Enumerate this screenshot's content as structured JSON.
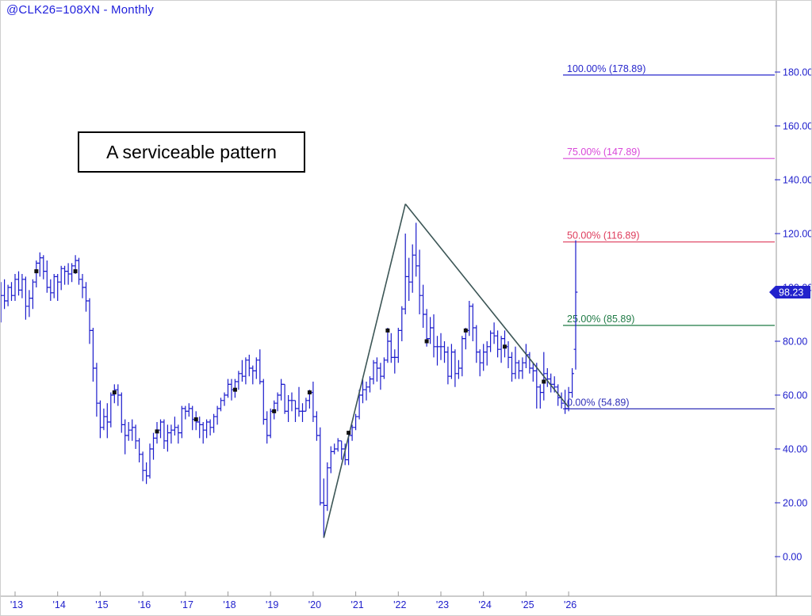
{
  "window": {
    "title": "@CLK26=108XN - Monthly"
  },
  "annotation": {
    "text": "A serviceable pattern"
  },
  "price_tag": {
    "value": "98.23",
    "bg": "#2222cc",
    "text_color": "#ffffff"
  },
  "colors": {
    "bar": "#1c1ccc",
    "axis_text": "#2020cc",
    "frame": "#9a9a9a",
    "trendline": "#3c5656",
    "marker": "#111111",
    "background": "#ffffff"
  },
  "chart_data": {
    "type": "bar",
    "subtype": "ohlc-monthly",
    "symbol": "@CLK26=108XN",
    "timeframe": "Monthly",
    "title": "@CLK26=108XN - Monthly",
    "start_month": "2012-09",
    "bars_format": [
      "open",
      "high",
      "low",
      "close"
    ],
    "bars": [
      [
        95,
        102,
        87,
        97
      ],
      [
        97,
        103,
        92,
        95
      ],
      [
        95,
        101,
        93,
        100
      ],
      [
        100,
        102,
        95,
        97
      ],
      [
        97,
        105,
        95,
        103
      ],
      [
        103,
        106,
        97,
        99
      ],
      [
        99,
        105,
        96,
        103
      ],
      [
        103,
        104,
        88,
        93
      ],
      [
        93,
        99,
        89,
        96
      ],
      [
        96,
        103,
        92,
        102
      ],
      [
        102,
        110,
        100,
        109
      ],
      [
        109,
        113,
        104,
        111
      ],
      [
        111,
        112,
        103,
        106
      ],
      [
        106,
        110,
        98,
        100
      ],
      [
        100,
        103,
        95,
        98
      ],
      [
        98,
        105,
        96,
        104
      ],
      [
        104,
        105,
        95,
        102
      ],
      [
        102,
        108,
        99,
        107
      ],
      [
        107,
        108,
        101,
        106
      ],
      [
        106,
        109,
        101,
        105
      ],
      [
        105,
        109,
        102,
        108
      ],
      [
        108,
        112,
        105,
        110
      ],
      [
        110,
        111,
        101,
        103
      ],
      [
        103,
        105,
        96,
        100
      ],
      [
        100,
        102,
        91,
        95
      ],
      [
        95,
        96,
        79,
        84
      ],
      [
        84,
        85,
        65,
        70
      ],
      [
        70,
        72,
        52,
        57
      ],
      [
        57,
        58,
        44,
        48
      ],
      [
        48,
        55,
        47,
        52
      ],
      [
        52,
        57,
        44,
        50
      ],
      [
        50,
        61,
        48,
        60
      ],
      [
        60,
        64,
        57,
        62
      ],
      [
        62,
        64,
        56,
        60
      ],
      [
        60,
        61,
        46,
        49
      ],
      [
        49,
        51,
        38,
        45
      ],
      [
        45,
        50,
        43,
        47
      ],
      [
        47,
        51,
        43,
        48
      ],
      [
        48,
        49,
        40,
        43
      ],
      [
        43,
        44,
        35,
        38
      ],
      [
        38,
        39,
        28,
        32
      ],
      [
        32,
        35,
        27,
        30
      ],
      [
        30,
        42,
        29,
        40
      ],
      [
        40,
        46,
        36,
        44
      ],
      [
        44,
        50,
        42,
        47
      ],
      [
        47,
        51,
        44,
        50
      ],
      [
        50,
        51,
        40,
        43
      ],
      [
        43,
        49,
        39,
        46
      ],
      [
        46,
        49,
        42,
        47
      ],
      [
        47,
        52,
        45,
        48
      ],
      [
        48,
        49,
        42,
        46
      ],
      [
        46,
        56,
        44,
        55
      ],
      [
        55,
        56,
        51,
        54
      ],
      [
        54,
        57,
        52,
        55
      ],
      [
        55,
        56,
        47,
        51
      ],
      [
        51,
        54,
        47,
        50
      ],
      [
        50,
        52,
        44,
        49
      ],
      [
        49,
        50,
        42,
        47
      ],
      [
        47,
        51,
        44,
        50
      ],
      [
        50,
        51,
        45,
        48
      ],
      [
        48,
        53,
        46,
        52
      ],
      [
        52,
        56,
        49,
        55
      ],
      [
        55,
        59,
        54,
        58
      ],
      [
        58,
        61,
        56,
        60
      ],
      [
        60,
        66,
        59,
        64
      ],
      [
        64,
        66,
        58,
        62
      ],
      [
        62,
        66,
        59,
        65
      ],
      [
        65,
        69,
        62,
        68
      ],
      [
        68,
        73,
        65,
        67
      ],
      [
        67,
        74,
        64,
        73
      ],
      [
        73,
        75,
        67,
        70
      ],
      [
        70,
        71,
        64,
        69
      ],
      [
        69,
        74,
        66,
        73
      ],
      [
        73,
        77,
        64,
        65
      ],
      [
        65,
        66,
        49,
        51
      ],
      [
        51,
        54,
        42,
        45
      ],
      [
        45,
        55,
        44,
        54
      ],
      [
        54,
        58,
        51,
        57
      ],
      [
        57,
        61,
        54,
        60
      ],
      [
        60,
        66,
        58,
        64
      ],
      [
        64,
        64,
        53,
        54
      ],
      [
        54,
        60,
        50,
        58
      ],
      [
        58,
        61,
        54,
        58
      ],
      [
        58,
        58,
        50,
        55
      ],
      [
        55,
        63,
        52,
        54
      ],
      [
        54,
        57,
        50,
        54
      ],
      [
        54,
        59,
        54,
        58
      ],
      [
        58,
        62,
        55,
        61
      ],
      [
        61,
        65,
        50,
        52
      ],
      [
        52,
        54,
        43,
        45
      ],
      [
        45,
        48,
        19,
        20
      ],
      [
        20,
        29,
        7,
        19
      ],
      [
        19,
        35,
        17,
        33
      ],
      [
        33,
        41,
        31,
        39
      ],
      [
        39,
        42,
        38,
        40
      ],
      [
        40,
        44,
        39,
        43
      ],
      [
        43,
        43,
        36,
        40
      ],
      [
        40,
        42,
        34,
        36
      ],
      [
        36,
        46,
        34,
        45
      ],
      [
        45,
        49,
        43,
        48
      ],
      [
        48,
        53,
        47,
        52
      ],
      [
        52,
        62,
        51,
        60
      ],
      [
        60,
        66,
        57,
        62
      ],
      [
        62,
        65,
        58,
        63
      ],
      [
        63,
        67,
        61,
        66
      ],
      [
        66,
        73,
        64,
        72
      ],
      [
        72,
        74,
        65,
        70
      ],
      [
        70,
        72,
        62,
        67
      ],
      [
        67,
        74,
        66,
        73
      ],
      [
        73,
        85,
        72,
        80
      ],
      [
        80,
        83,
        72,
        74
      ],
      [
        74,
        77,
        68,
        74
      ],
      [
        74,
        85,
        72,
        84
      ],
      [
        84,
        93,
        80,
        92
      ],
      [
        92,
        120,
        90,
        104
      ],
      [
        104,
        111,
        95,
        102
      ],
      [
        102,
        116,
        98,
        112
      ],
      [
        112,
        124,
        104,
        108
      ],
      [
        108,
        114,
        90,
        97
      ],
      [
        97,
        101,
        85,
        90
      ],
      [
        90,
        92,
        78,
        81
      ],
      [
        81,
        89,
        79,
        85
      ],
      [
        85,
        90,
        74,
        78
      ],
      [
        78,
        82,
        71,
        78
      ],
      [
        78,
        83,
        73,
        78
      ],
      [
        78,
        80,
        72,
        76
      ],
      [
        76,
        78,
        64,
        67
      ],
      [
        67,
        79,
        66,
        76
      ],
      [
        76,
        77,
        63,
        68
      ],
      [
        68,
        73,
        66,
        70
      ],
      [
        70,
        82,
        67,
        81
      ],
      [
        81,
        85,
        77,
        84
      ],
      [
        84,
        95,
        82,
        93
      ],
      [
        93,
        94,
        80,
        85
      ],
      [
        85,
        86,
        72,
        76
      ],
      [
        76,
        77,
        67,
        72
      ],
      [
        72,
        79,
        69,
        76
      ],
      [
        76,
        80,
        71,
        78
      ],
      [
        78,
        84,
        76,
        83
      ],
      [
        83,
        87,
        79,
        82
      ],
      [
        82,
        84,
        74,
        77
      ],
      [
        77,
        82,
        72,
        81
      ],
      [
        81,
        84,
        74,
        78
      ],
      [
        78,
        80,
        70,
        74
      ],
      [
        74,
        76,
        65,
        68
      ],
      [
        68,
        78,
        66,
        72
      ],
      [
        72,
        73,
        66,
        69
      ],
      [
        69,
        74,
        66,
        72
      ],
      [
        72,
        79,
        70,
        75
      ],
      [
        75,
        76,
        68,
        70
      ],
      [
        70,
        72,
        65,
        69
      ],
      [
        69,
        72,
        55,
        63
      ],
      [
        63,
        64,
        55,
        61
      ],
      [
        61,
        76,
        58,
        68
      ],
      [
        68,
        70,
        63,
        66
      ],
      [
        66,
        68,
        61,
        64
      ],
      [
        64,
        67,
        61,
        63
      ],
      [
        63,
        64,
        56,
        59
      ],
      [
        59,
        61,
        55,
        57
      ],
      [
        57,
        62,
        53,
        55
      ],
      [
        55,
        63,
        54,
        61
      ],
      [
        61,
        70,
        59,
        68
      ],
      [
        77,
        117.5,
        69.5,
        98.23
      ]
    ],
    "last_price": 98.23,
    "fib_levels": [
      {
        "label": "100.00% (178.89)",
        "pct": 100.0,
        "value": 178.89,
        "color": "#2727cc"
      },
      {
        "label": "75.00% (147.89)",
        "pct": 75.0,
        "value": 147.89,
        "color": "#d948d9"
      },
      {
        "label": "50.00% (116.89)",
        "pct": 50.0,
        "value": 116.89,
        "color": "#de3c5c"
      },
      {
        "label": "25.00% (85.89)",
        "pct": 25.0,
        "value": 85.89,
        "color": "#1f7a45"
      },
      {
        "label": "0.00% (54.89)",
        "pct": 0.0,
        "value": 54.89,
        "color": "#3030b8"
      }
    ],
    "trendlines": [
      {
        "from": {
          "month": "2020-04",
          "price": 7
        },
        "to": {
          "month": "2022-03",
          "price": 131
        }
      },
      {
        "from": {
          "month": "2022-03",
          "price": 131
        },
        "to": {
          "month": "2026-01",
          "price": 55.5
        }
      }
    ],
    "markers": [
      {
        "month": "2013-07",
        "price": 106
      },
      {
        "month": "2014-06",
        "price": 106
      },
      {
        "month": "2015-05",
        "price": 61
      },
      {
        "month": "2016-05",
        "price": 46.5
      },
      {
        "month": "2017-04",
        "price": 51
      },
      {
        "month": "2018-03",
        "price": 62
      },
      {
        "month": "2019-02",
        "price": 54
      },
      {
        "month": "2019-12",
        "price": 61
      },
      {
        "month": "2020-11",
        "price": 46
      },
      {
        "month": "2021-10",
        "price": 84
      },
      {
        "month": "2022-09",
        "price": 80
      },
      {
        "month": "2023-08",
        "price": 84
      },
      {
        "month": "2024-07",
        "price": 78
      },
      {
        "month": "2025-06",
        "price": 65
      }
    ],
    "y_axis": {
      "min": 0,
      "max": 180,
      "step": 20,
      "labels": [
        "180.00",
        "160.00",
        "140.00",
        "120.00",
        "100.00",
        "80.00",
        "60.00",
        "40.00",
        "20.00",
        "0.00"
      ]
    },
    "x_axis": {
      "year_labels": [
        "'13",
        "'14",
        "'15",
        "'16",
        "'17",
        "'18",
        "'19",
        "'20",
        "'21",
        "'22",
        "'23",
        "'24",
        "'25",
        "'26"
      ]
    },
    "grid": "off",
    "legend": "none"
  }
}
